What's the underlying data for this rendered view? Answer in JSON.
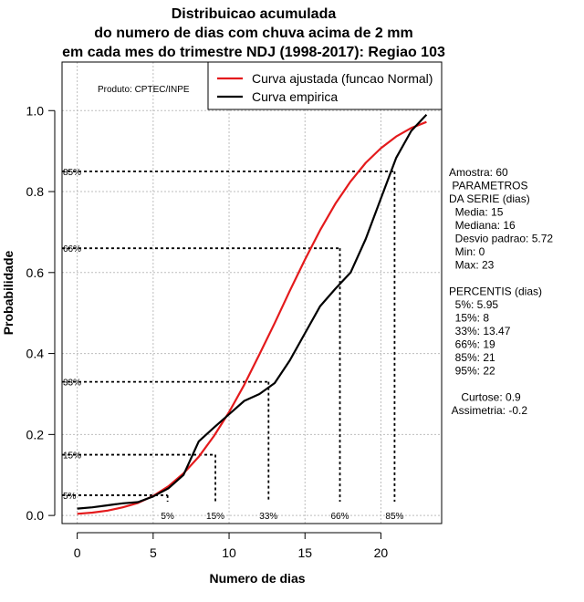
{
  "chart_data": {
    "type": "line",
    "title_lines": [
      "Distribuicao acumulada",
      "do numero de dias com chuva acima de 2 mm",
      "em cada mes do trimestre NDJ (1998-2017): Regiao 103"
    ],
    "xlabel": "Numero de dias",
    "ylabel": "Probabilidade",
    "xlim": [
      -1,
      24
    ],
    "ylim": [
      -0.02,
      1.12
    ],
    "xticks": [
      0,
      5,
      10,
      15,
      20
    ],
    "yticks": [
      0.0,
      0.2,
      0.4,
      0.6,
      0.8,
      1.0
    ],
    "ytick_labels": [
      "0.0",
      "0.2",
      "0.4",
      "0.6",
      "0.8",
      "1.0"
    ],
    "grid": true,
    "product_label": "Produto: CPTEC/INPE",
    "legend": [
      {
        "label": "Curva ajustada (funcao Normal)",
        "color": "#e41a1c"
      },
      {
        "label": "Curva empirica",
        "color": "#000000"
      }
    ],
    "series": [
      {
        "name": "Curva ajustada (funcao Normal)",
        "color": "#e41a1c",
        "x": [
          0,
          1,
          2,
          3,
          4,
          5,
          6,
          7,
          8,
          9,
          10,
          11,
          12,
          13,
          14,
          15,
          16,
          17,
          18,
          19,
          20,
          21,
          22,
          23
        ],
        "y": [
          0.004,
          0.007,
          0.012,
          0.02,
          0.031,
          0.048,
          0.072,
          0.104,
          0.145,
          0.196,
          0.255,
          0.323,
          0.398,
          0.475,
          0.555,
          0.632,
          0.705,
          0.77,
          0.825,
          0.871,
          0.907,
          0.936,
          0.957,
          0.972
        ]
      },
      {
        "name": "Curva empirica",
        "color": "#000000",
        "x": [
          0,
          1,
          2,
          3,
          4,
          5,
          6,
          7,
          8,
          9,
          10,
          11,
          12,
          13,
          14,
          15,
          16,
          17,
          18,
          19,
          20,
          21,
          22,
          23
        ],
        "y": [
          0.017,
          0.02,
          0.025,
          0.03,
          0.033,
          0.047,
          0.067,
          0.1,
          0.183,
          0.217,
          0.25,
          0.283,
          0.3,
          0.327,
          0.383,
          0.45,
          0.517,
          0.56,
          0.6,
          0.683,
          0.783,
          0.883,
          0.95,
          0.99
        ]
      }
    ],
    "percentile_markers": [
      {
        "label": "5%",
        "x": 5.95,
        "y": 0.05,
        "y_label": "5%"
      },
      {
        "label": "15%",
        "x": 9.1,
        "y": 0.15,
        "y_label": "15%"
      },
      {
        "label": "33%",
        "x": 12.6,
        "y": 0.33,
        "y_label": "33%"
      },
      {
        "label": "66%",
        "x": 17.3,
        "y": 0.66,
        "y_label": "66%"
      },
      {
        "label": "85%",
        "x": 20.9,
        "y": 0.85,
        "y_label": "85%"
      }
    ],
    "side_text": [
      "Amostra: 60",
      " PARAMETROS",
      "DA SERIE (dias)",
      "  Media: 15",
      "  Mediana: 16",
      "  Desvio padrao: 5.72",
      "  Min: 0",
      "  Max: 23",
      "",
      "PERCENTIS (dias)",
      "  5%: 5.95",
      "  15%: 8",
      "  33%: 13.47",
      "  66%: 19",
      "  85%: 21",
      "  95%: 22",
      "",
      "    Curtose: 0.9",
      " Assimetria: -0.2"
    ]
  }
}
